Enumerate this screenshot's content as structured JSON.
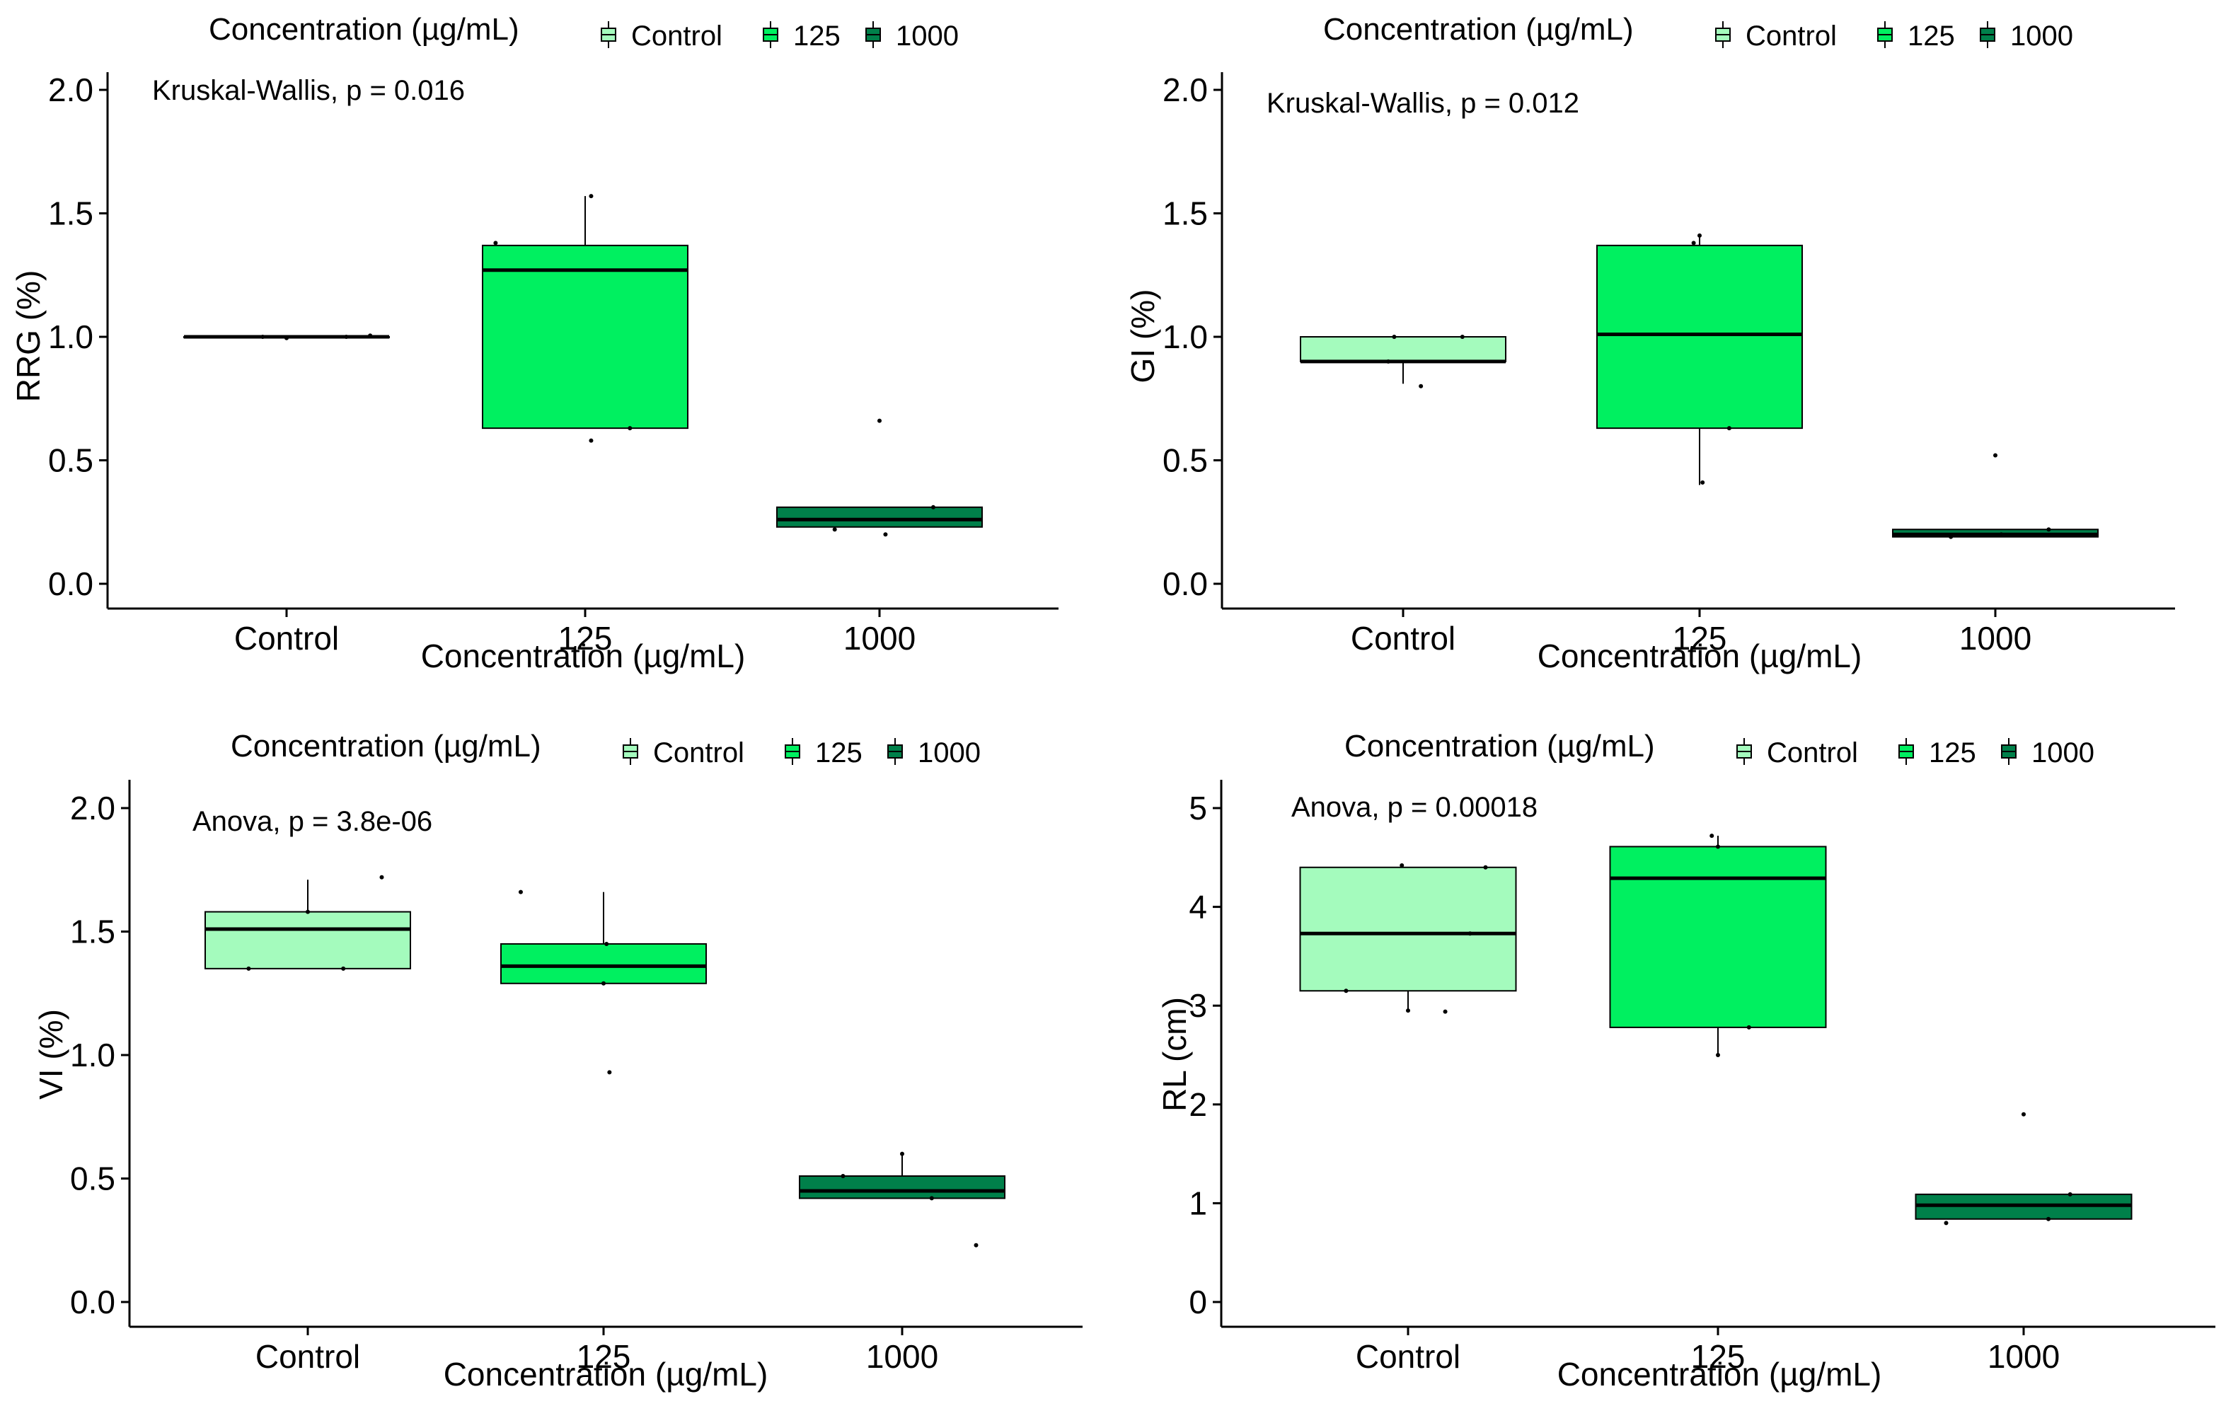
{
  "colors": {
    "control": "#a4fbbd",
    "c125": "#00f060",
    "c1000": "#00804a",
    "axis": "#000000",
    "background": "#ffffff"
  },
  "chart_data": [
    {
      "type": "box",
      "id": "rrg",
      "legend": {
        "title": "Concentration (µg/mL)",
        "items": [
          "Control",
          "125",
          "1000"
        ],
        "position": "top"
      },
      "annotation": "Kruskal-Wallis, p = 0.016",
      "xlabel": "Concentration (µg/mL)",
      "ylabel": "RRG (%)",
      "categories": [
        "Control",
        "125",
        "1000"
      ],
      "ylim": [
        -0.1,
        2.1
      ],
      "yticks": [
        0.0,
        0.5,
        1.0,
        1.5,
        2.0
      ],
      "ytick_labels": [
        "0.0",
        "0.5",
        "1.0",
        "1.5",
        "2.0"
      ],
      "boxes": [
        {
          "group": "Control",
          "q1": 1.0,
          "median": 1.0,
          "q3": 1.0,
          "whisker_low": 1.0,
          "whisker_high": 1.0,
          "points": [
            [
              -0.08,
              1.0
            ],
            [
              0.0,
              0.995
            ],
            [
              0.2,
              1.0
            ],
            [
              0.28,
              1.005
            ]
          ]
        },
        {
          "group": "125",
          "q1": 0.63,
          "median": 1.27,
          "q3": 1.37,
          "whisker_low": 0.63,
          "whisker_high": 1.57,
          "points": [
            [
              -0.3,
              1.38
            ],
            [
              0.02,
              0.58
            ],
            [
              0.02,
              1.57
            ],
            [
              0.15,
              0.63
            ]
          ]
        },
        {
          "group": "1000",
          "q1": 0.23,
          "median": 0.26,
          "q3": 0.31,
          "whisker_low": 0.23,
          "whisker_high": 0.31,
          "points": [
            [
              -0.15,
              0.22
            ],
            [
              0.0,
              0.66
            ],
            [
              0.02,
              0.2
            ],
            [
              0.18,
              0.31
            ]
          ]
        }
      ]
    },
    {
      "type": "box",
      "id": "gi",
      "legend": {
        "title": "Concentration (µg/mL)",
        "items": [
          "Control",
          "125",
          "1000"
        ],
        "position": "top"
      },
      "annotation": "Kruskal-Wallis, p = 0.012",
      "xlabel": "Concentration (µg/mL)",
      "ylabel": "GI (%)",
      "categories": [
        "Control",
        "125",
        "1000"
      ],
      "ylim": [
        -0.1,
        2.1
      ],
      "yticks": [
        0.0,
        0.5,
        1.0,
        1.5,
        2.0
      ],
      "ytick_labels": [
        "0.0",
        "0.5",
        "1.0",
        "1.5",
        "2.0"
      ],
      "boxes": [
        {
          "group": "Control",
          "q1": 0.9,
          "median": 0.9,
          "q3": 1.0,
          "whisker_low": 0.81,
          "whisker_high": 1.0,
          "points": [
            [
              -0.05,
              0.9
            ],
            [
              -0.03,
              1.0
            ],
            [
              0.06,
              0.8
            ],
            [
              0.2,
              1.0
            ]
          ]
        },
        {
          "group": "125",
          "q1": 0.63,
          "median": 1.01,
          "q3": 1.37,
          "whisker_low": 0.4,
          "whisker_high": 1.41,
          "points": [
            [
              -0.02,
              1.38
            ],
            [
              0.0,
              1.41
            ],
            [
              0.01,
              0.41
            ],
            [
              0.1,
              0.63
            ]
          ]
        },
        {
          "group": "1000",
          "q1": 0.19,
          "median": 0.2,
          "q3": 0.22,
          "whisker_low": 0.19,
          "whisker_high": 0.22,
          "points": [
            [
              -0.15,
              0.19
            ],
            [
              0.0,
              0.52
            ],
            [
              0.02,
              0.2
            ],
            [
              0.18,
              0.22
            ]
          ]
        }
      ]
    },
    {
      "type": "box",
      "id": "vi",
      "legend": {
        "title": "Concentration (µg/mL)",
        "items": [
          "Control",
          "125",
          "1000"
        ],
        "position": "top"
      },
      "annotation": "Anova, p = 3.8e-06",
      "xlabel": "Concentration (µg/mL)",
      "ylabel": "VI (%)",
      "categories": [
        "Control",
        "125",
        "1000"
      ],
      "ylim": [
        -0.1,
        2.1
      ],
      "yticks": [
        0.0,
        0.5,
        1.0,
        1.5,
        2.0
      ],
      "ytick_labels": [
        "0.0",
        "0.5",
        "1.0",
        "1.5",
        "2.0"
      ],
      "boxes": [
        {
          "group": "Control",
          "q1": 1.35,
          "median": 1.51,
          "q3": 1.58,
          "whisker_low": 1.35,
          "whisker_high": 1.71,
          "points": [
            [
              -0.2,
              1.35
            ],
            [
              0.0,
              1.58
            ],
            [
              0.12,
              1.35
            ],
            [
              0.25,
              1.72
            ]
          ]
        },
        {
          "group": "125",
          "q1": 1.29,
          "median": 1.36,
          "q3": 1.45,
          "whisker_low": 1.29,
          "whisker_high": 1.66,
          "points": [
            [
              -0.28,
              1.66
            ],
            [
              0.02,
              0.93
            ],
            [
              0.0,
              1.29
            ],
            [
              0.01,
              1.45
            ]
          ]
        },
        {
          "group": "1000",
          "q1": 0.42,
          "median": 0.45,
          "q3": 0.51,
          "whisker_low": 0.42,
          "whisker_high": 0.6,
          "points": [
            [
              -0.2,
              0.51
            ],
            [
              0.0,
              0.6
            ],
            [
              0.1,
              0.42
            ],
            [
              0.25,
              0.23
            ]
          ]
        }
      ]
    },
    {
      "type": "box",
      "id": "rl",
      "legend": {
        "title": "Concentration (µg/mL)",
        "items": [
          "Control",
          "125",
          "1000"
        ],
        "position": "top"
      },
      "annotation": "Anova, p = 0.00018",
      "xlabel": "Concentration (µg/mL)",
      "ylabel": "RL (cm)",
      "categories": [
        "Control",
        "125",
        "1000"
      ],
      "ylim": [
        -0.25,
        5.25
      ],
      "yticks": [
        0,
        1,
        2,
        3,
        4,
        5
      ],
      "ytick_labels": [
        "0",
        "1",
        "2",
        "3",
        "4",
        "5"
      ],
      "boxes": [
        {
          "group": "Control",
          "q1": 3.15,
          "median": 3.73,
          "q3": 4.4,
          "whisker_low": 2.95,
          "whisker_high": 4.4,
          "points": [
            [
              -0.02,
              4.42
            ],
            [
              0.0,
              2.95
            ],
            [
              0.12,
              2.94
            ],
            [
              0.2,
              3.73
            ],
            [
              0.25,
              4.4
            ],
            [
              -0.2,
              3.15
            ]
          ]
        },
        {
          "group": "125",
          "q1": 2.78,
          "median": 4.29,
          "q3": 4.61,
          "whisker_low": 2.5,
          "whisker_high": 4.72,
          "points": [
            [
              -0.02,
              4.72
            ],
            [
              0.0,
              2.5
            ],
            [
              0.0,
              4.61
            ],
            [
              0.1,
              2.78
            ]
          ]
        },
        {
          "group": "1000",
          "q1": 0.84,
          "median": 0.98,
          "q3": 1.09,
          "whisker_low": 0.84,
          "whisker_high": 1.09,
          "points": [
            [
              -0.25,
              0.8
            ],
            [
              0.0,
              1.9
            ],
            [
              0.08,
              0.84
            ],
            [
              0.15,
              1.09
            ]
          ]
        }
      ]
    }
  ]
}
